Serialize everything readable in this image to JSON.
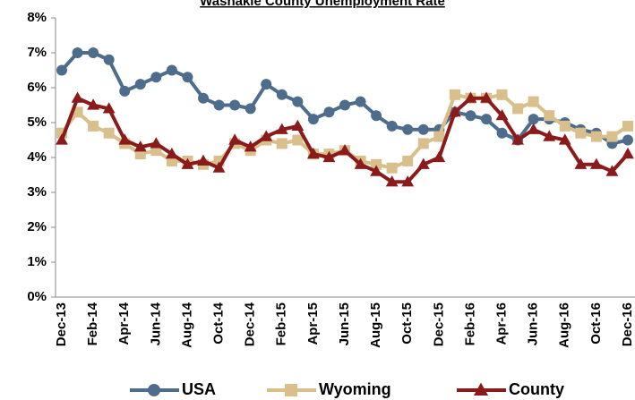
{
  "chart_data": {
    "type": "line",
    "title": "Washakie County Unemployment Rate",
    "categories": [
      "Dec-13",
      null,
      "Feb-14",
      null,
      "Apr-14",
      null,
      "Jun-14",
      null,
      "Aug-14",
      null,
      "Oct-14",
      null,
      "Dec-14",
      null,
      "Feb-15",
      null,
      "Apr-15",
      null,
      "Jun-15",
      null,
      "Aug-15",
      null,
      "Oct-15",
      null,
      "Dec-15",
      null,
      "Feb-16",
      null,
      "Apr-16",
      null,
      "Jun-16",
      null,
      "Aug-16",
      null,
      "Oct-16",
      null,
      "Dec-16"
    ],
    "series": [
      {
        "name": "USA",
        "color": "#4e6d8c",
        "marker": "circle",
        "values": [
          6.5,
          7.0,
          7.0,
          6.8,
          5.9,
          6.1,
          6.3,
          6.5,
          6.3,
          5.7,
          5.5,
          5.5,
          5.4,
          6.1,
          5.8,
          5.6,
          5.1,
          5.3,
          5.5,
          5.6,
          5.2,
          4.9,
          4.8,
          4.8,
          4.8,
          5.3,
          5.2,
          5.1,
          4.7,
          4.5,
          5.1,
          5.1,
          5.0,
          4.8,
          4.7,
          4.4,
          4.5
        ]
      },
      {
        "name": "Wyoming",
        "color": "#d9bf8c",
        "marker": "square",
        "values": [
          4.7,
          5.3,
          4.9,
          4.7,
          4.4,
          4.1,
          4.2,
          3.9,
          3.9,
          3.8,
          3.9,
          4.4,
          4.2,
          4.5,
          4.4,
          4.5,
          4.1,
          4.1,
          4.2,
          3.9,
          3.8,
          3.7,
          3.9,
          4.4,
          4.6,
          5.8,
          5.7,
          5.7,
          5.8,
          5.4,
          5.6,
          5.2,
          4.9,
          4.7,
          4.6,
          4.6,
          4.9
        ]
      },
      {
        "name": "County",
        "color": "#8b1a1a",
        "marker": "triangle",
        "values": [
          4.5,
          5.7,
          5.5,
          5.4,
          4.5,
          4.3,
          4.4,
          4.1,
          3.8,
          3.9,
          3.7,
          4.5,
          4.3,
          4.6,
          4.8,
          4.9,
          4.1,
          4.0,
          4.2,
          3.8,
          3.6,
          3.3,
          3.3,
          3.8,
          4.0,
          5.3,
          5.7,
          5.7,
          5.2,
          4.5,
          4.8,
          4.6,
          4.5,
          3.8,
          3.8,
          3.6,
          4.1
        ]
      }
    ],
    "ylim": [
      0,
      8
    ],
    "yticks": [
      {
        "value": 0,
        "label": "0%"
      },
      {
        "value": 1,
        "label": "1%"
      },
      {
        "value": 2,
        "label": "2%"
      },
      {
        "value": 3,
        "label": "3%"
      },
      {
        "value": 4,
        "label": "4%"
      },
      {
        "value": 5,
        "label": "5%"
      },
      {
        "value": 6,
        "label": "6%"
      },
      {
        "value": 7,
        "label": "7%"
      },
      {
        "value": 8,
        "label": "8%"
      }
    ],
    "grid": false,
    "legend": "bottom"
  }
}
